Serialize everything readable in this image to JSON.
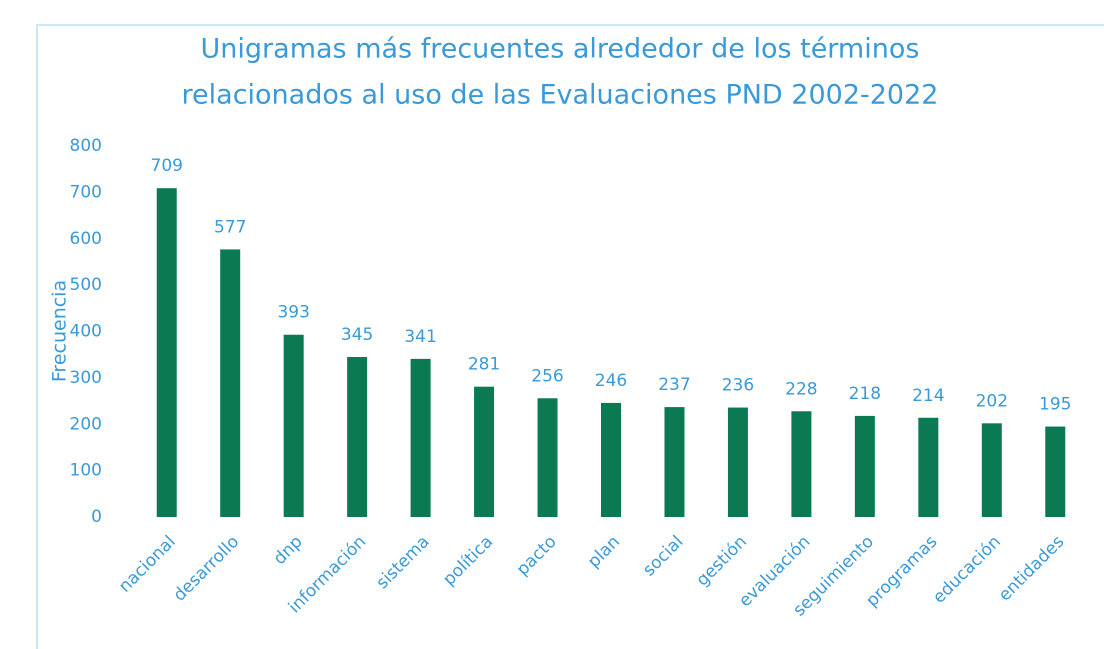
{
  "chart_data": {
    "type": "bar",
    "title": [
      "Unigramas más frecuentes alrededor de los términos",
      "relacionados al uso de las Evaluaciones PND 2002-2022"
    ],
    "y_label": "Frecuencia",
    "categories": [
      "nacional",
      "desarrollo",
      "dnp",
      "información",
      "sistema",
      "política",
      "pacto",
      "plan",
      "social",
      "gestión",
      "evaluación",
      "seguimiento",
      "programas",
      "educación",
      "entidades"
    ],
    "values": [
      709,
      577,
      393,
      345,
      341,
      281,
      256,
      246,
      237,
      236,
      228,
      218,
      214,
      202,
      195
    ],
    "color": "#0b7a52",
    "ylim": [
      0,
      800
    ],
    "yticks": [
      0,
      100,
      200,
      300,
      400,
      500,
      600,
      700,
      800
    ],
    "grid": false,
    "data_labels": true
  }
}
